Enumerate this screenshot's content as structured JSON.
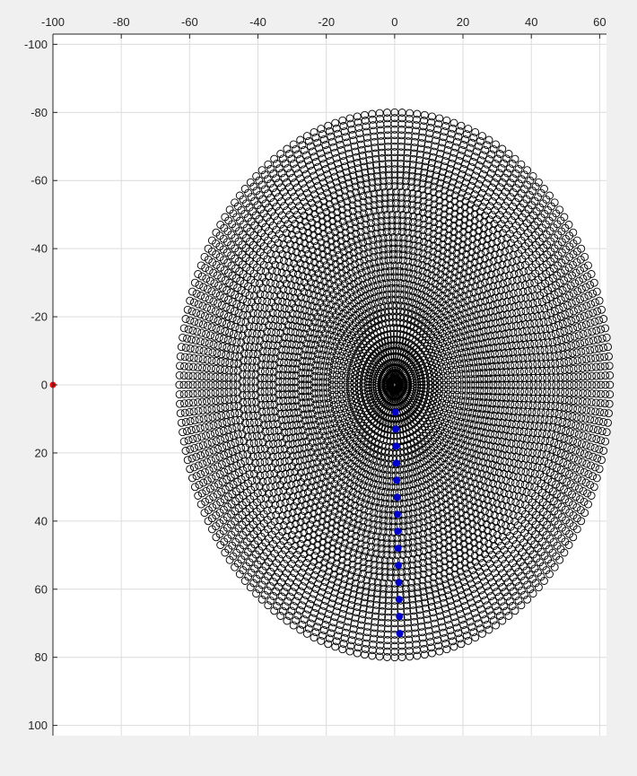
{
  "figure": {
    "background": "#f0f0f0",
    "axes_background": "#ffffff",
    "grid_color": "#dcdcdc",
    "axis_color": "#262626"
  },
  "chart_data": {
    "type": "scatter",
    "title": "",
    "xlabel": "",
    "ylabel": "",
    "xlim": [
      -100,
      62
    ],
    "ylim": [
      -103,
      103
    ],
    "y_direction": "reversed",
    "x_axis_location": "top",
    "grid": true,
    "x_ticks": [
      "-100",
      "-80",
      "-60",
      "-40",
      "-20",
      "0",
      "20",
      "40",
      "60"
    ],
    "y_ticks": [
      "-100",
      "-80",
      "-60",
      "-40",
      "-20",
      "0",
      "20",
      "40",
      "60",
      "80",
      "100"
    ],
    "series": [
      {
        "kind": "polar-grid-rings",
        "marker": "open-circle",
        "color": "#000000",
        "center": [
          0,
          0
        ],
        "radius_x_max": 63,
        "radius_y_max": 80,
        "ring_count": 48,
        "points_per_ring": 180
      },
      {
        "kind": "points",
        "marker": "filled-circle",
        "color": "#0000cc",
        "x": [
          0.2,
          0.3,
          0.4,
          0.5,
          0.6,
          0.7,
          0.8,
          0.9,
          1.0,
          1.1,
          1.2,
          1.3,
          1.4,
          1.5
        ],
        "y": [
          8,
          13,
          18,
          23,
          28,
          33,
          38,
          43,
          48,
          53,
          58,
          63,
          68,
          73
        ]
      },
      {
        "kind": "points",
        "marker": "filled-circle",
        "color": "#ff0000",
        "x": [
          -100
        ],
        "y": [
          0
        ]
      }
    ]
  }
}
